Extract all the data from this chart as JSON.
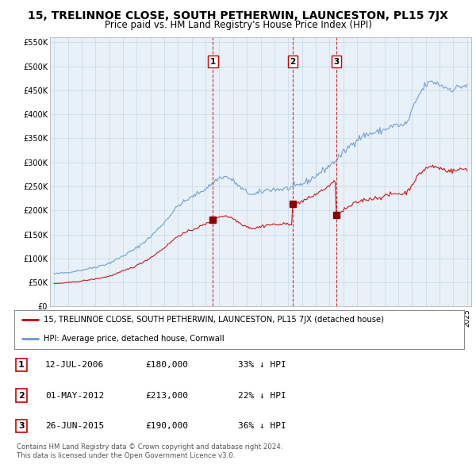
{
  "title": "15, TRELINNOE CLOSE, SOUTH PETHERWIN, LAUNCESTON, PL15 7JX",
  "subtitle": "Price paid vs. HM Land Registry's House Price Index (HPI)",
  "title_fontsize": 10,
  "subtitle_fontsize": 8.5,
  "ylim": [
    0,
    560000
  ],
  "yticks": [
    0,
    50000,
    100000,
    150000,
    200000,
    250000,
    300000,
    350000,
    400000,
    450000,
    500000,
    550000
  ],
  "ytick_labels": [
    "£0",
    "£50K",
    "£100K",
    "£150K",
    "£200K",
    "£250K",
    "£300K",
    "£350K",
    "£400K",
    "£450K",
    "£500K",
    "£550K"
  ],
  "hpi_color": "#6699cc",
  "price_color": "#cc0000",
  "grid_color": "#c8d8e8",
  "bg_color": "#e8f0f8",
  "sale_dates_dec": [
    2006.538,
    2012.332,
    2015.49
  ],
  "sale_prices": [
    180000,
    213000,
    190000
  ],
  "sale_labels": [
    "1",
    "2",
    "3"
  ],
  "legend_line1": "15, TRELINNOE CLOSE, SOUTH PETHERWIN, LAUNCESTON, PL15 7JX (detached house)",
  "legend_line2": "HPI: Average price, detached house, Cornwall",
  "table_data": [
    [
      "1",
      "12-JUL-2006",
      "£180,000",
      "33% ↓ HPI"
    ],
    [
      "2",
      "01-MAY-2012",
      "£213,000",
      "22% ↓ HPI"
    ],
    [
      "3",
      "26-JUN-2015",
      "£190,000",
      "36% ↓ HPI"
    ]
  ],
  "footnote1": "Contains HM Land Registry data © Crown copyright and database right 2024.",
  "footnote2": "This data is licensed under the Open Government Licence v3.0."
}
